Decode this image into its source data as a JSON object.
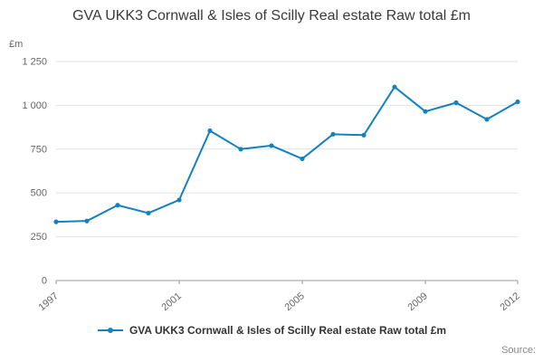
{
  "title": "GVA UKK3 Cornwall & Isles of Scilly Real estate Raw total £m",
  "unit_label": "£m",
  "legend": {
    "label": "GVA UKK3 Cornwall & Isles of Scilly Real estate Raw total £m"
  },
  "source": "Source:",
  "colors": {
    "line": "#1382c1",
    "grid": "#e2e2e2",
    "axis": "#9a9a9a",
    "tick_text": "#666666",
    "title_text": "#3a3a3a"
  },
  "chart_data": {
    "type": "line",
    "title": "GVA UKK3 Cornwall & Isles of Scilly Real estate Raw total £m",
    "xlabel": "",
    "ylabel": "£m",
    "x": [
      1997,
      1998,
      1999,
      2000,
      2001,
      2002,
      2003,
      2004,
      2005,
      2006,
      2007,
      2008,
      2009,
      2010,
      2011,
      2012
    ],
    "values": [
      335,
      340,
      430,
      385,
      460,
      855,
      750,
      770,
      695,
      835,
      830,
      1105,
      965,
      1015,
      920,
      1020
    ],
    "ylim": [
      0,
      1250
    ],
    "yticks": [
      0,
      250,
      500,
      750,
      1000,
      1250
    ],
    "ytick_labels": [
      "0",
      "250",
      "500",
      "750",
      "1 000",
      "1 250"
    ],
    "xticks_shown": [
      1997,
      2001,
      2005,
      2009,
      2012
    ],
    "grid": "horizontal",
    "legend_position": "bottom",
    "marker": "circle"
  }
}
